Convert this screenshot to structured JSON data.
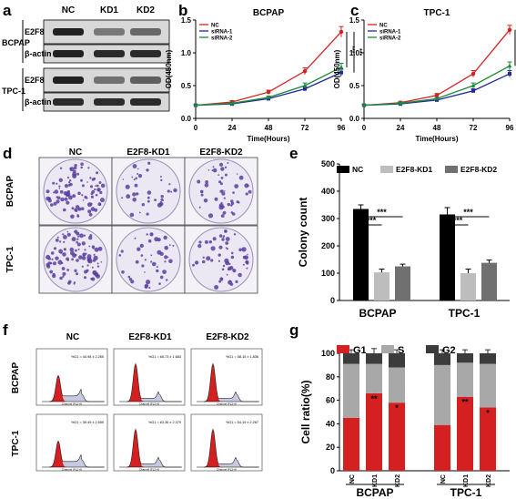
{
  "panels": {
    "a": {
      "letter": "a",
      "lanes": [
        "NC",
        "KD1",
        "KD2"
      ],
      "rows": [
        {
          "cell": "BCPAP",
          "bands": [
            "E2F8",
            "β-actin"
          ]
        },
        {
          "cell": "TPC-1",
          "bands": [
            "E2F8",
            "β-actin"
          ]
        }
      ],
      "band_intensity": {
        "BCPAP_E2F8": [
          0.95,
          0.45,
          0.55
        ],
        "BCPAP_actin": [
          0.95,
          0.9,
          0.9
        ],
        "TPC1_E2F8": [
          0.95,
          0.5,
          0.6
        ],
        "TPC1_actin": [
          0.9,
          0.88,
          0.9
        ]
      }
    },
    "b": {
      "letter": "b"
    },
    "c": {
      "letter": "c"
    },
    "d": {
      "letter": "d",
      "columns": [
        "NC",
        "E2F8-KD1",
        "E2F8-KD2"
      ],
      "rows": [
        "BCPAP",
        "TPC-1"
      ],
      "colony_density": [
        [
          0.55,
          0.22,
          0.3
        ],
        [
          0.6,
          0.25,
          0.35
        ]
      ],
      "colors": {
        "colony": "#5b3fa0",
        "dish": "#ece8f3"
      }
    },
    "e": {
      "letter": "e"
    },
    "f": {
      "letter": "f",
      "columns": [
        "NC",
        "E2F8-KD1",
        "E2F8-KD2"
      ],
      "rows": [
        "BCPAP",
        "TPC-1"
      ],
      "annotations": [
        [
          "%G1 = 44.98 ± 2.265",
          "%G1 = 65.73 ± 1.683",
          "%G1 = 58.15 ± 1.836"
        ],
        [
          "%G1 = 39.49 ± 2.559",
          "%G1 = 63.36 ± 2.379",
          "%G1 = 54.19 ± 2.287"
        ]
      ],
      "axis_label": "Channel (FL2-A)",
      "colors": {
        "g1": "#d42020",
        "s": "#b8bcd8",
        "outline": "#222222"
      }
    },
    "g": {
      "letter": "g"
    }
  },
  "chart_data": [
    {
      "panel": "b",
      "type": "line",
      "title": "BCPAP",
      "xlabel": "Time(Hours)",
      "ylabel": "OD(450nm)",
      "x": [
        0,
        24,
        48,
        72,
        96
      ],
      "xlim": [
        0,
        96
      ],
      "ylim": [
        0,
        1.5
      ],
      "yticks": [
        0.0,
        0.5,
        1.0,
        1.5
      ],
      "series": [
        {
          "name": "NC",
          "color": "#d42020",
          "values": [
            0.2,
            0.25,
            0.4,
            0.72,
            1.32
          ],
          "err": [
            0.01,
            0.02,
            0.03,
            0.05,
            0.08
          ]
        },
        {
          "name": "siRNA-1",
          "color": "#1f2a9c",
          "values": [
            0.2,
            0.22,
            0.3,
            0.45,
            0.7
          ],
          "err": [
            0.01,
            0.02,
            0.02,
            0.03,
            0.05
          ]
        },
        {
          "name": "siRNA-2",
          "color": "#1a8a3a",
          "values": [
            0.2,
            0.23,
            0.32,
            0.5,
            0.78
          ],
          "err": [
            0.01,
            0.02,
            0.02,
            0.04,
            0.06
          ]
        }
      ],
      "significance": [
        "***",
        "***"
      ],
      "legend": "top-left"
    },
    {
      "panel": "c",
      "type": "line",
      "title": "TPC-1",
      "xlabel": "Time(Hours)",
      "ylabel": "OD(450nm)",
      "x": [
        0,
        24,
        48,
        72,
        96
      ],
      "xlim": [
        0,
        96
      ],
      "ylim": [
        0,
        1.5
      ],
      "yticks": [
        0.0,
        0.5,
        1.0,
        1.5
      ],
      "series": [
        {
          "name": "NC",
          "color": "#d42020",
          "values": [
            0.2,
            0.24,
            0.35,
            0.68,
            1.35
          ],
          "err": [
            0.01,
            0.02,
            0.03,
            0.05,
            0.07
          ]
        },
        {
          "name": "siRNA-1",
          "color": "#1f2a9c",
          "values": [
            0.2,
            0.22,
            0.28,
            0.42,
            0.68
          ],
          "err": [
            0.01,
            0.02,
            0.02,
            0.03,
            0.05
          ]
        },
        {
          "name": "siRNA-2",
          "color": "#1a8a3a",
          "values": [
            0.2,
            0.23,
            0.3,
            0.5,
            0.8
          ],
          "err": [
            0.01,
            0.02,
            0.02,
            0.04,
            0.06
          ]
        }
      ],
      "significance": [
        "***",
        "***"
      ],
      "legend": "top-left"
    },
    {
      "panel": "e",
      "type": "bar",
      "xlabel": "",
      "ylabel": "Colony count",
      "categories": [
        "BCPAP",
        "TPC-1"
      ],
      "ylim": [
        0,
        500
      ],
      "yticks": [
        0,
        100,
        200,
        300,
        400,
        500
      ],
      "series": [
        {
          "name": "NC",
          "color": "#000000",
          "values": [
            335,
            315
          ],
          "err": [
            15,
            25
          ]
        },
        {
          "name": "E2F8-KD1",
          "color": "#bdbdbd",
          "values": [
            103,
            100
          ],
          "err": [
            12,
            15
          ]
        },
        {
          "name": "E2F8-KD2",
          "color": "#707070",
          "values": [
            125,
            138
          ],
          "err": [
            8,
            10
          ]
        }
      ],
      "significance": [
        "***",
        "***",
        "***",
        "***"
      ],
      "legend": "top"
    },
    {
      "panel": "g",
      "type": "bar",
      "stacked": true,
      "xlabel": "",
      "ylabel": "Cell ratio(%)",
      "groups": [
        "BCPAP",
        "TPC-1"
      ],
      "categories": [
        "NC",
        "KD1",
        "KD2",
        "NC",
        "KD1",
        "KD2"
      ],
      "ylim": [
        0,
        100
      ],
      "yticks": [
        0,
        20,
        40,
        60,
        80,
        100
      ],
      "series": [
        {
          "name": "G1",
          "color": "#d42020",
          "values": [
            45,
            66,
            58,
            39,
            63,
            54
          ],
          "err": [
            3,
            2,
            2,
            3,
            2,
            2
          ]
        },
        {
          "name": "S",
          "color": "#a8a8a8",
          "values": [
            46,
            25,
            30,
            51,
            29,
            37
          ]
        },
        {
          "name": "G2",
          "color": "#3c3c3c",
          "values": [
            9,
            9,
            12,
            10,
            8,
            9
          ],
          "err": [
            3,
            4,
            3,
            3,
            3,
            3
          ]
        }
      ],
      "significance": [
        "",
        "**",
        "*",
        "",
        "**",
        "*"
      ],
      "legend": "top"
    }
  ]
}
